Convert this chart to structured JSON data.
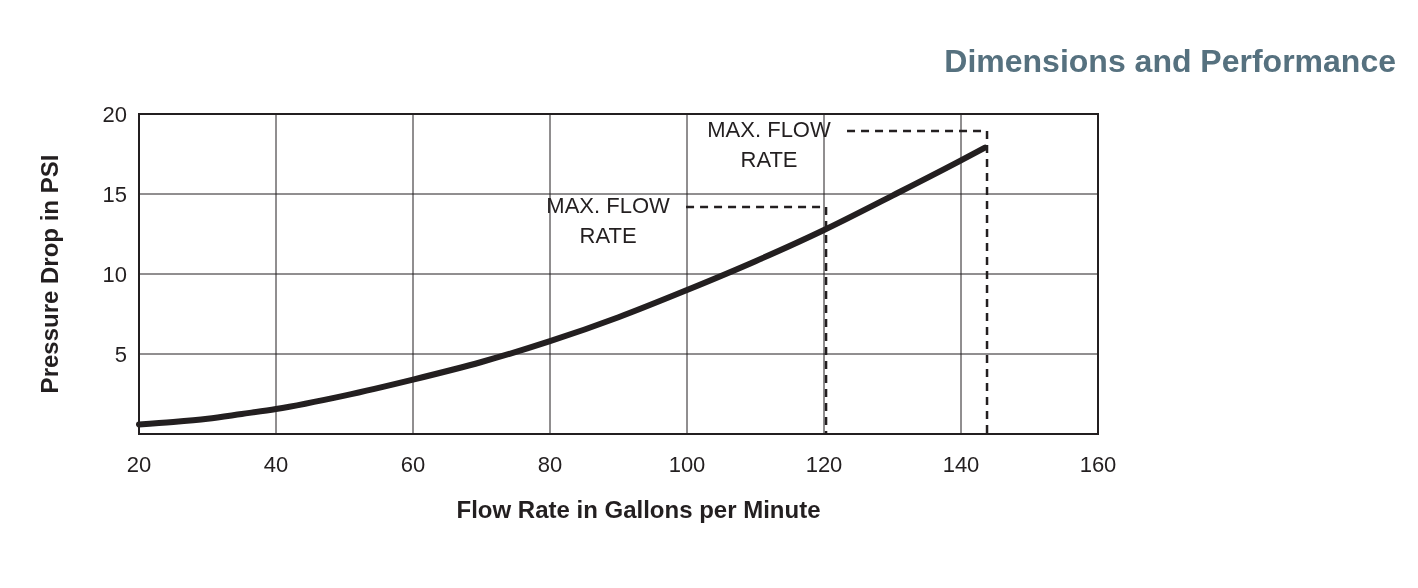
{
  "chart_data": {
    "type": "line",
    "title": "Dimensions and Performance",
    "xlabel": "Flow Rate in Gallons per Minute",
    "ylabel": "Pressure Drop in PSI",
    "xlim": [
      20,
      160
    ],
    "xticks": [
      20,
      40,
      60,
      80,
      100,
      120,
      140,
      160
    ],
    "ylim": [
      0,
      20
    ],
    "yticks": [
      5,
      10,
      15,
      20
    ],
    "grid": true,
    "marker": "none",
    "line_style": "solid",
    "series": [
      {
        "color": "#231f20",
        "x": [
          20,
          25,
          30,
          35,
          40,
          50,
          60,
          70,
          80,
          90,
          100,
          110,
          120,
          130,
          140,
          143.5
        ],
        "values": [
          0.6,
          0.75,
          0.95,
          1.25,
          1.56,
          2.4,
          3.4,
          4.5,
          5.8,
          7.3,
          9.0,
          10.8,
          12.75,
          14.9,
          17.1,
          17.9
        ]
      }
    ],
    "ref_lines": [
      {
        "axis": "x",
        "value": 120.3,
        "label": "MAX. FLOW RATE",
        "line_style": "dashed"
      },
      {
        "axis": "x",
        "value": 143.8,
        "label": "MAX. FLOW RATE",
        "line_style": "dashed"
      }
    ]
  }
}
